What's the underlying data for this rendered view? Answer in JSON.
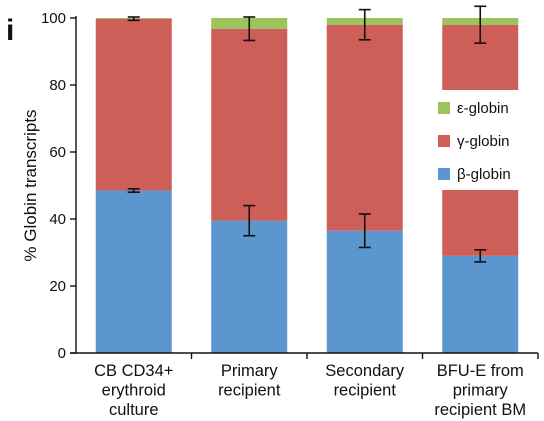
{
  "panel_label": "i",
  "chart_data": {
    "type": "bar",
    "stacked": true,
    "ylabel": "% Globin transcripts",
    "ylim": [
      0,
      100
    ],
    "yticks": [
      0,
      20,
      40,
      60,
      80,
      100
    ],
    "categories": [
      [
        "CB CD34+",
        "erythroid",
        "culture"
      ],
      [
        "Primary",
        "recipient"
      ],
      [
        "Secondary",
        "recipient"
      ],
      [
        "BFU-E from",
        "primary",
        "recipient BM"
      ]
    ],
    "series": [
      {
        "name": "β-globin",
        "color": "#5b96cf",
        "values": [
          48.5,
          39.5,
          36.5,
          29
        ]
      },
      {
        "name": "γ-globin",
        "color": "#cd5f58",
        "values": [
          51.3,
          57.3,
          61.5,
          69
        ]
      },
      {
        "name": "ε-globin",
        "color": "#9bc55a",
        "values": [
          0.2,
          3.2,
          2,
          2
        ]
      }
    ],
    "error_bars": [
      {
        "at": [
          48.5,
          39.5,
          36.5,
          29
        ],
        "err": [
          0.5,
          4.5,
          5,
          1.8
        ]
      },
      {
        "at": [
          99.8,
          96.8,
          98,
          98
        ],
        "err": [
          0.5,
          3.5,
          4.5,
          5.5
        ]
      }
    ],
    "legend": {
      "position": "right-inside",
      "order": [
        "ε-globin",
        "γ-globin",
        "β-globin"
      ]
    },
    "grid": false
  }
}
